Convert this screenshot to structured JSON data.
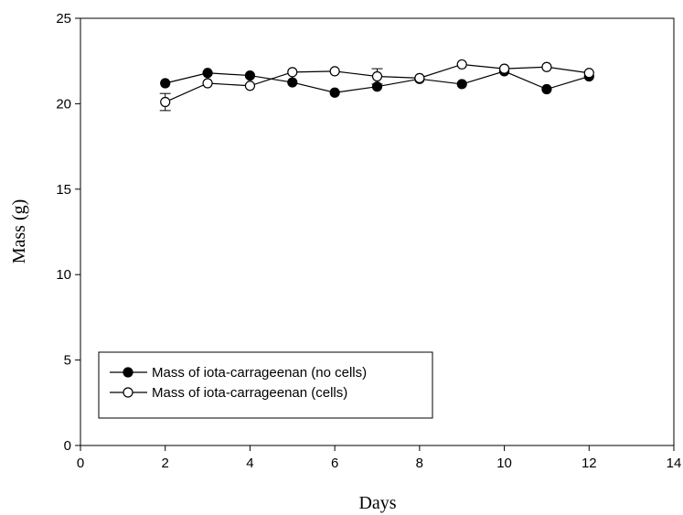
{
  "chart_data": {
    "type": "line",
    "xlabel": "Days",
    "ylabel": "Mass (g)",
    "xlim": [
      0,
      14
    ],
    "ylim": [
      0,
      25
    ],
    "xticks": [
      "0",
      "2",
      "4",
      "6",
      "8",
      "10",
      "12",
      "14"
    ],
    "yticks": [
      "0",
      "5",
      "10",
      "15",
      "20",
      "25"
    ],
    "grid": false,
    "legend_position": "bottom-left",
    "series": [
      {
        "name": "Mass of iota-carrageenan (no cells)",
        "marker": "filled-circle",
        "color": "#000000",
        "x": [
          2,
          3,
          4,
          5,
          6,
          7,
          8,
          9,
          10,
          11,
          12
        ],
        "y": [
          21.2,
          21.8,
          21.65,
          21.25,
          20.65,
          21.0,
          21.45,
          21.15,
          21.9,
          20.85,
          21.6
        ]
      },
      {
        "name": "Mass of iota-carrageenan (cells)",
        "marker": "open-circle",
        "color": "#000000",
        "x": [
          2,
          3,
          4,
          5,
          6,
          7,
          8,
          9,
          10,
          11,
          12
        ],
        "y": [
          20.1,
          21.2,
          21.05,
          21.85,
          21.9,
          21.6,
          21.5,
          22.3,
          22.05,
          22.15,
          21.8
        ],
        "error": [
          0.5,
          0,
          0,
          0,
          0,
          0.45,
          0,
          0,
          0,
          0,
          0
        ]
      }
    ]
  }
}
